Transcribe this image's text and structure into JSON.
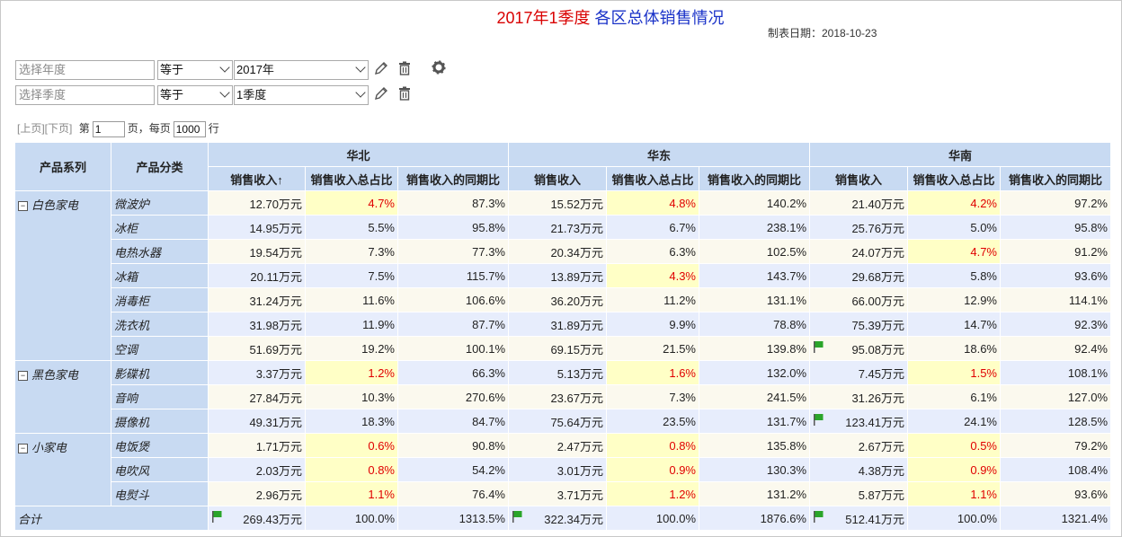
{
  "report": {
    "title_part1": "2017年1季度",
    "title_part2": " 各区总体销售情况",
    "date_label": "制表日期：2018-10-23"
  },
  "filters": [
    {
      "field_placeholder": "选择年度",
      "operator": "等于",
      "value": "2017年"
    },
    {
      "field_placeholder": "选择季度",
      "operator": "等于",
      "value": "1季度"
    }
  ],
  "pager": {
    "prev": "[上页]",
    "next": "[下页]",
    "page_prefix": "第",
    "page_value": "1",
    "page_suffix": "页，每页",
    "size_value": "1000",
    "size_suffix": "行"
  },
  "table": {
    "col_series": "产品系列",
    "col_category": "产品分类",
    "regions": [
      "华北",
      "华东",
      "华南"
    ],
    "metrics": [
      "销售收入↑",
      "销售收入总占比",
      "销售收入的同期比"
    ],
    "metrics_plain": [
      "销售收入",
      "销售收入总占比",
      "销售收入的同期比"
    ],
    "groups": [
      {
        "series": "白色家电",
        "rows": [
          {
            "cat": "微波炉",
            "v": [
              "12.70万元",
              "4.7%",
              "87.3%",
              "15.52万元",
              "4.8%",
              "140.2%",
              "21.40万元",
              "4.2%",
              "97.2%"
            ]
          },
          {
            "cat": "冰柜",
            "v": [
              "14.95万元",
              "5.5%",
              "95.8%",
              "21.73万元",
              "6.7%",
              "238.1%",
              "25.76万元",
              "5.0%",
              "95.8%"
            ]
          },
          {
            "cat": "电热水器",
            "v": [
              "19.54万元",
              "7.3%",
              "77.3%",
              "20.34万元",
              "6.3%",
              "102.5%",
              "24.07万元",
              "4.7%",
              "91.2%"
            ]
          },
          {
            "cat": "冰箱",
            "v": [
              "20.11万元",
              "7.5%",
              "115.7%",
              "13.89万元",
              "4.3%",
              "143.7%",
              "29.68万元",
              "5.8%",
              "93.6%"
            ]
          },
          {
            "cat": "消毒柜",
            "v": [
              "31.24万元",
              "11.6%",
              "106.6%",
              "36.20万元",
              "11.2%",
              "131.1%",
              "66.00万元",
              "12.9%",
              "114.1%"
            ]
          },
          {
            "cat": "洗衣机",
            "v": [
              "31.98万元",
              "11.9%",
              "87.7%",
              "31.89万元",
              "9.9%",
              "78.8%",
              "75.39万元",
              "14.7%",
              "92.3%"
            ]
          },
          {
            "cat": "空调",
            "v": [
              "51.69万元",
              "19.2%",
              "100.1%",
              "69.15万元",
              "21.5%",
              "139.8%",
              "95.08万元",
              "18.6%",
              "92.4%"
            ]
          }
        ]
      },
      {
        "series": "黑色家电",
        "rows": [
          {
            "cat": "影碟机",
            "v": [
              "3.37万元",
              "1.2%",
              "66.3%",
              "5.13万元",
              "1.6%",
              "132.0%",
              "7.45万元",
              "1.5%",
              "108.1%"
            ]
          },
          {
            "cat": "音响",
            "v": [
              "27.84万元",
              "10.3%",
              "270.6%",
              "23.67万元",
              "7.3%",
              "241.5%",
              "31.26万元",
              "6.1%",
              "127.0%"
            ]
          },
          {
            "cat": "摄像机",
            "v": [
              "49.31万元",
              "18.3%",
              "84.7%",
              "75.64万元",
              "23.5%",
              "131.7%",
              "123.41万元",
              "24.1%",
              "128.5%"
            ]
          }
        ]
      },
      {
        "series": "小家电",
        "rows": [
          {
            "cat": "电饭煲",
            "v": [
              "1.71万元",
              "0.6%",
              "90.8%",
              "2.47万元",
              "0.8%",
              "135.8%",
              "2.67万元",
              "0.5%",
              "79.2%"
            ]
          },
          {
            "cat": "电吹风",
            "v": [
              "2.03万元",
              "0.8%",
              "54.2%",
              "3.01万元",
              "0.9%",
              "130.3%",
              "4.38万元",
              "0.9%",
              "108.4%"
            ]
          },
          {
            "cat": "电熨斗",
            "v": [
              "2.96万元",
              "1.1%",
              "76.4%",
              "3.71万元",
              "1.2%",
              "131.2%",
              "5.87万元",
              "1.1%",
              "93.6%"
            ]
          }
        ]
      }
    ],
    "total": {
      "label": "合计",
      "v": [
        "269.43万元",
        "100.0%",
        "1313.5%",
        "322.34万元",
        "100.0%",
        "1876.6%",
        "512.41万元",
        "100.0%",
        "1321.4%"
      ]
    }
  },
  "colors": {
    "highlight_bg": "#ffffc6",
    "highlight_text": "#e00000",
    "header_bg": "#c8daf2",
    "flag": "#2aa52a"
  }
}
